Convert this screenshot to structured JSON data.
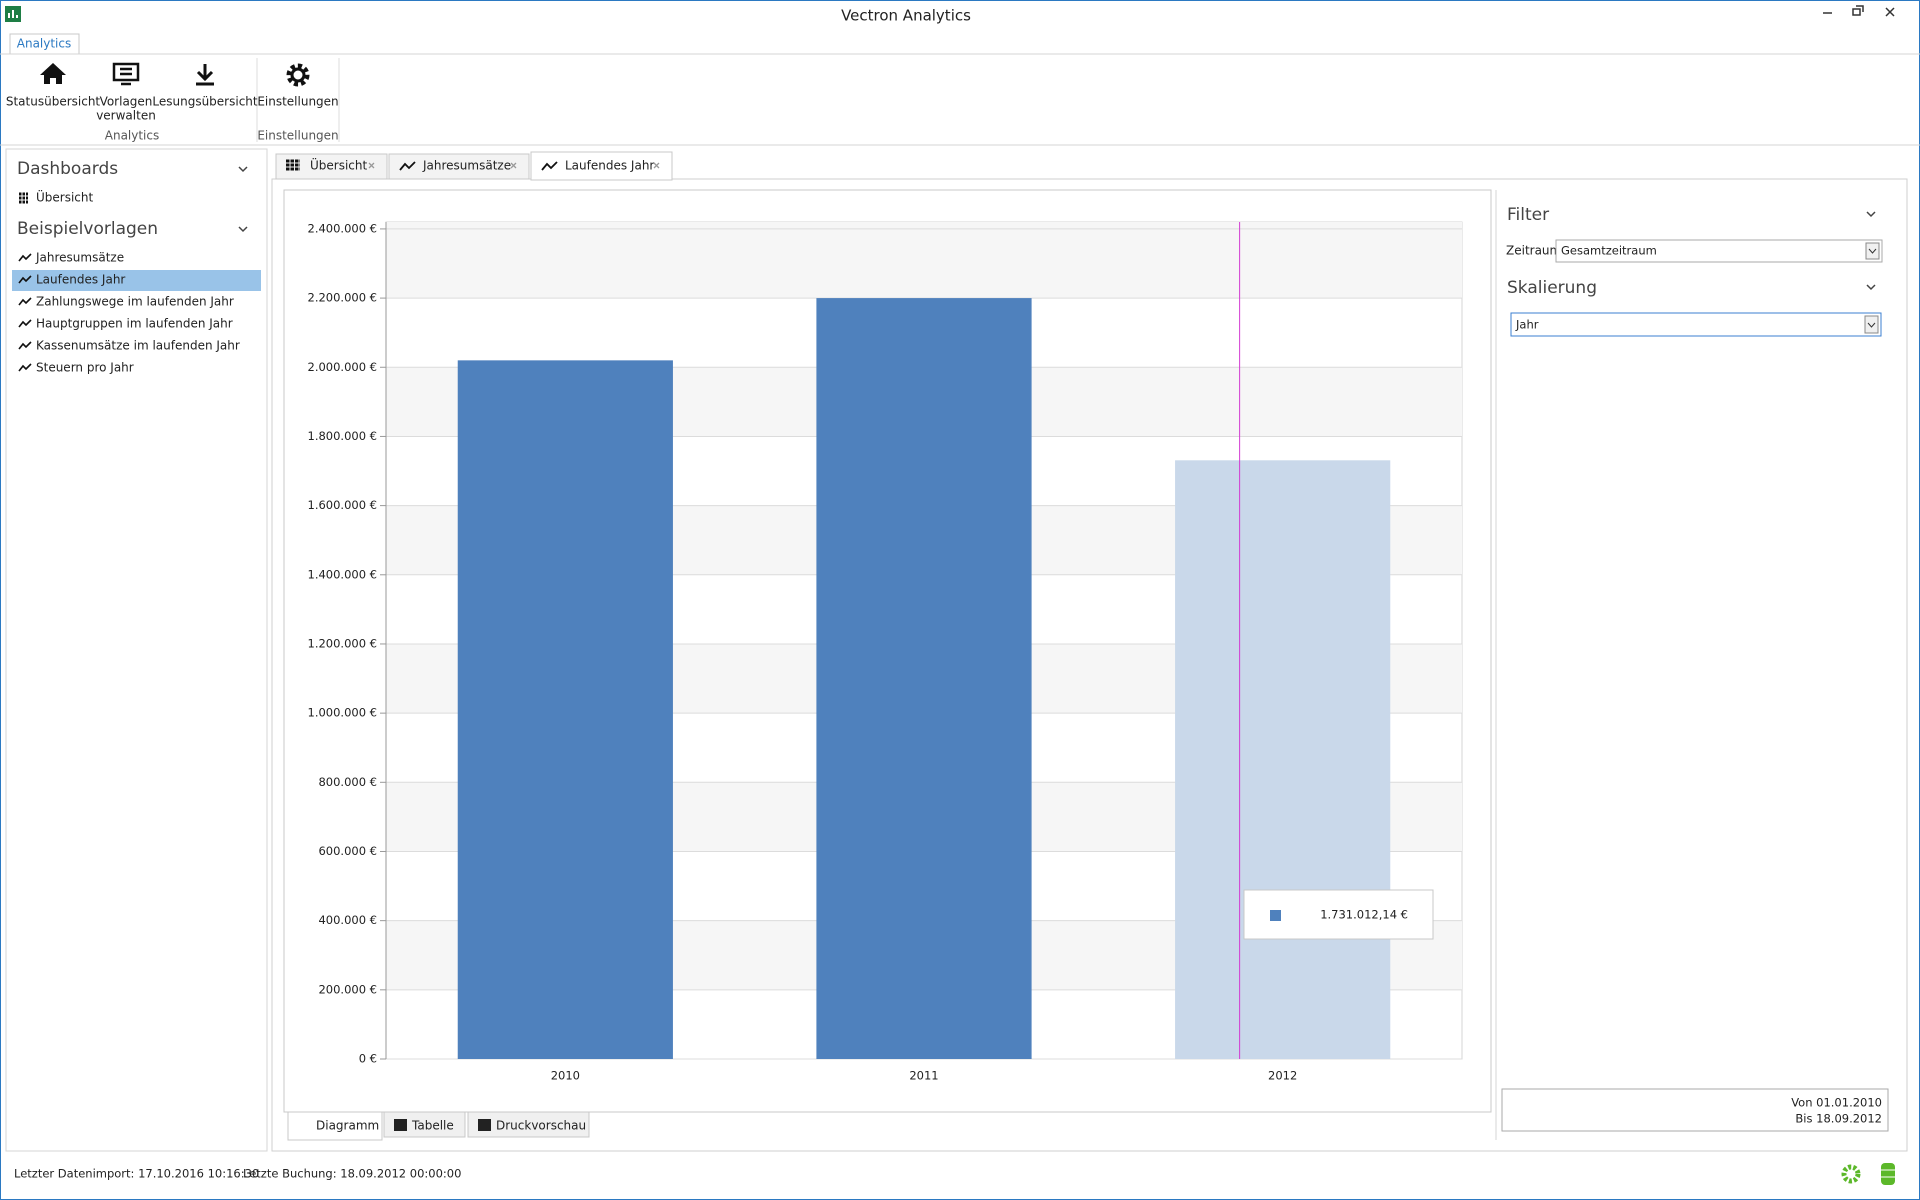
{
  "window": {
    "title": "Vectron Analytics"
  },
  "ribbon": {
    "tab": "Analytics",
    "buttons": [
      {
        "lines": [
          "Statusübersicht"
        ]
      },
      {
        "lines": [
          "Vorlagen",
          "verwalten"
        ]
      },
      {
        "lines": [
          "Lesungsübersicht"
        ]
      },
      {
        "lines": [
          "Einstellungen"
        ]
      }
    ],
    "groups": [
      "Analytics",
      "Einstellungen"
    ]
  },
  "sidebar": {
    "sections": [
      {
        "title": "Dashboards",
        "items": [
          "Übersicht"
        ]
      },
      {
        "title": "Beispielvorlagen",
        "items": [
          "Jahresumsätze",
          "Laufendes Jahr",
          "Zahlungswege im laufenden Jahr",
          "Hauptgruppen im laufenden Jahr",
          "Kassenumsätze im laufenden Jahr",
          "Steuern pro Jahr"
        ]
      }
    ]
  },
  "tabs": [
    "Übersicht",
    "Jahresumsätze",
    "Laufendes Jahr"
  ],
  "view_tabs": [
    "Diagramm",
    "Tabelle",
    "Druckvorschau"
  ],
  "filter_panel": {
    "filter_title": "Filter",
    "zeitraum_label": "Zeitraum",
    "zeitraum_value": "Gesamtzeitraum",
    "skalierung_title": "Skalierung",
    "skalierung_value": "Jahr",
    "range": [
      "Von 01.01.2010",
      "Bis 18.09.2012"
    ]
  },
  "status_bar": [
    "Letzter Datenimport: 17.10.2016 10:16:30",
    "Letzte Buchung: 18.09.2012 00:00:00"
  ],
  "chart_data": {
    "type": "bar",
    "categories": [
      "2010",
      "2011",
      "2012"
    ],
    "values": [
      2020000,
      2200000,
      1731012.14
    ],
    "value_labels": [
      null,
      null,
      "1.731.012,14 €"
    ],
    "colors": [
      "#4f81bd",
      "#4f81bd",
      "#c9d8ea"
    ],
    "ylim": [
      0,
      2420000
    ],
    "yticks": [
      {
        "value": 0,
        "label": "0 €"
      },
      {
        "value": 200000,
        "label": "200.000 €"
      },
      {
        "value": 400000,
        "label": "400.000 €"
      },
      {
        "value": 600000,
        "label": "600.000 €"
      },
      {
        "value": 800000,
        "label": "800.000 €"
      },
      {
        "value": 1000000,
        "label": "1.000.000 €"
      },
      {
        "value": 1200000,
        "label": "1.200.000 €"
      },
      {
        "value": 1400000,
        "label": "1.400.000 €"
      },
      {
        "value": 1600000,
        "label": "1.600.000 €"
      },
      {
        "value": 1800000,
        "label": "1.800.000 €"
      },
      {
        "value": 2000000,
        "label": "2.000.000 €"
      },
      {
        "value": 2200000,
        "label": "2.200.000 €"
      },
      {
        "value": 2400000,
        "label": "2.400.000 €"
      }
    ],
    "grid": true,
    "interlaced": true
  }
}
